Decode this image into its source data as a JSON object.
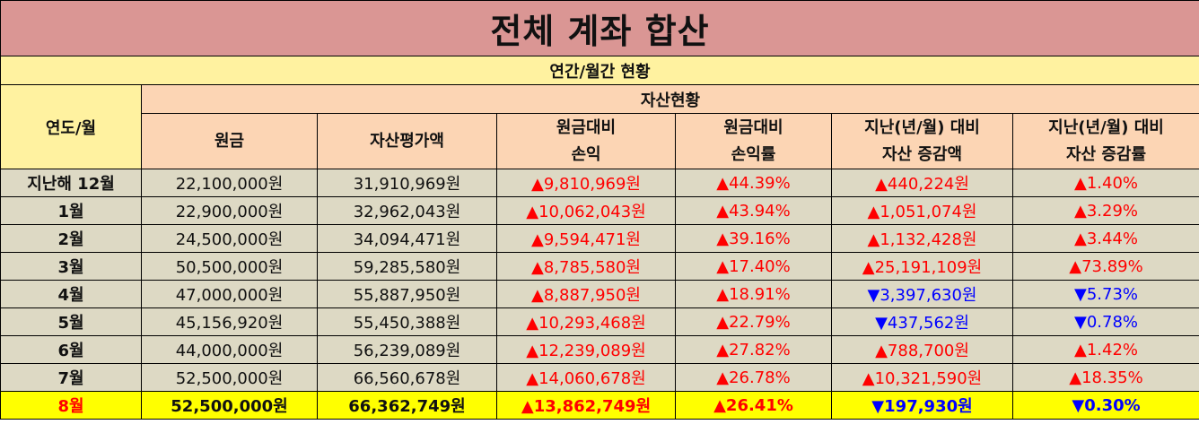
{
  "title": "전체 계좌 합산",
  "subtitle": "연간/월간 현황",
  "header": {
    "year_month": "연도/월",
    "asset_status": "자산현황",
    "columns": [
      {
        "line1": "원금",
        "line2": ""
      },
      {
        "line1": "자산평가액",
        "line2": ""
      },
      {
        "line1": "원금대비",
        "line2": "손익"
      },
      {
        "line1": "원금대비",
        "line2": "손익률"
      },
      {
        "line1": "지난(년/월) 대비",
        "line2": "자산 증감액"
      },
      {
        "line1": "지난(년/월) 대비",
        "line2": "자산 증감률"
      }
    ]
  },
  "rows": [
    {
      "label": "지난해 12월",
      "principal": "22,100,000원",
      "asset_value": "31,910,969원",
      "profit": "▲9,810,969원",
      "profit_rate": "▲44.39%",
      "change_amount": "▲440,224원",
      "change_rate": "▲1.40%",
      "change_dir": "up"
    },
    {
      "label": "1월",
      "principal": "22,900,000원",
      "asset_value": "32,962,043원",
      "profit": "▲10,062,043원",
      "profit_rate": "▲43.94%",
      "change_amount": "▲1,051,074원",
      "change_rate": "▲3.29%",
      "change_dir": "up"
    },
    {
      "label": "2월",
      "principal": "24,500,000원",
      "asset_value": "34,094,471원",
      "profit": "▲9,594,471원",
      "profit_rate": "▲39.16%",
      "change_amount": "▲1,132,428원",
      "change_rate": "▲3.44%",
      "change_dir": "up"
    },
    {
      "label": "3월",
      "principal": "50,500,000원",
      "asset_value": "59,285,580원",
      "profit": "▲8,785,580원",
      "profit_rate": "▲17.40%",
      "change_amount": "▲25,191,109원",
      "change_rate": "▲73.89%",
      "change_dir": "up"
    },
    {
      "label": "4월",
      "principal": "47,000,000원",
      "asset_value": "55,887,950원",
      "profit": "▲8,887,950원",
      "profit_rate": "▲18.91%",
      "change_amount": "▼3,397,630원",
      "change_rate": "▼5.73%",
      "change_dir": "down"
    },
    {
      "label": "5월",
      "principal": "45,156,920원",
      "asset_value": "55,450,388원",
      "profit": "▲10,293,468원",
      "profit_rate": "▲22.79%",
      "change_amount": "▼437,562원",
      "change_rate": "▼0.78%",
      "change_dir": "down"
    },
    {
      "label": "6월",
      "principal": "44,000,000원",
      "asset_value": "56,239,089원",
      "profit": "▲12,239,089원",
      "profit_rate": "▲27.82%",
      "change_amount": "▲788,700원",
      "change_rate": "▲1.42%",
      "change_dir": "up"
    },
    {
      "label": "7월",
      "principal": "52,500,000원",
      "asset_value": "66,560,678원",
      "profit": "▲14,060,678원",
      "profit_rate": "▲26.78%",
      "change_amount": "▲10,321,590원",
      "change_rate": "▲18.35%",
      "change_dir": "up"
    }
  ],
  "highlight_row": {
    "label": "8월",
    "principal": "52,500,000원",
    "asset_value": "66,362,749원",
    "profit": "▲13,862,749원",
    "profit_rate": "▲26.41%",
    "change_amount": "▼197,930원",
    "change_rate": "▼0.30%",
    "change_dir": "down"
  },
  "colors": {
    "title_bg": "#da9694",
    "subtitle_bg": "#fff2a0",
    "header_bg": "#fcd5b4",
    "row_bg": "#ddd9c4",
    "highlight_bg": "#ffff00",
    "increase": "#ff0000",
    "decrease": "#0000ff"
  }
}
